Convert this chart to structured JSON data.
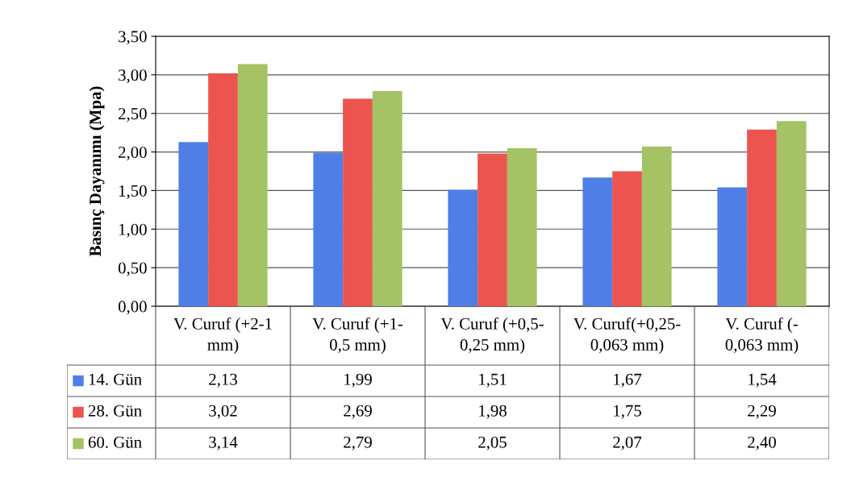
{
  "chart_data": {
    "type": "bar",
    "ylabel": "Basınç Dayanımı (Mpa)",
    "categories": [
      "V. Curuf (+2-1\nmm)",
      "V. Curuf (+1-\n0,5 mm)",
      "V. Curuf (+0,5-\n0,25 mm)",
      "V. Curuf(+0,25-\n0,063 mm)",
      "V. Curuf (-\n0,063 mm)"
    ],
    "series": [
      {
        "name": "14. Gün",
        "color": "#4f7fe6",
        "values": [
          2.13,
          1.99,
          1.51,
          1.67,
          1.54
        ],
        "value_labels": [
          "2,13",
          "1,99",
          "1,51",
          "1,67",
          "1,54"
        ]
      },
      {
        "name": "28. Gün",
        "color": "#ec5450",
        "values": [
          3.02,
          2.69,
          1.98,
          1.75,
          2.29
        ],
        "value_labels": [
          "3,02",
          "2,69",
          "1,98",
          "1,75",
          "2,29"
        ]
      },
      {
        "name": "60. Gün",
        "color": "#a5c264",
        "values": [
          3.14,
          2.79,
          2.05,
          2.07,
          2.4
        ],
        "value_labels": [
          "3,14",
          "2,79",
          "2,05",
          "2,07",
          "2,40"
        ]
      }
    ],
    "ylim": [
      0,
      3.5
    ],
    "yticks": [
      {
        "value": 0,
        "label": "0,00"
      },
      {
        "value": 0.5,
        "label": "0,50"
      },
      {
        "value": 1,
        "label": "1,00"
      },
      {
        "value": 1.5,
        "label": "1,50"
      },
      {
        "value": 2,
        "label": "2,00"
      },
      {
        "value": 2.5,
        "label": "2,50"
      },
      {
        "value": 3,
        "label": "3,00"
      },
      {
        "value": 3.5,
        "label": "3,50"
      }
    ],
    "grid": "y",
    "legend": "bottom"
  }
}
